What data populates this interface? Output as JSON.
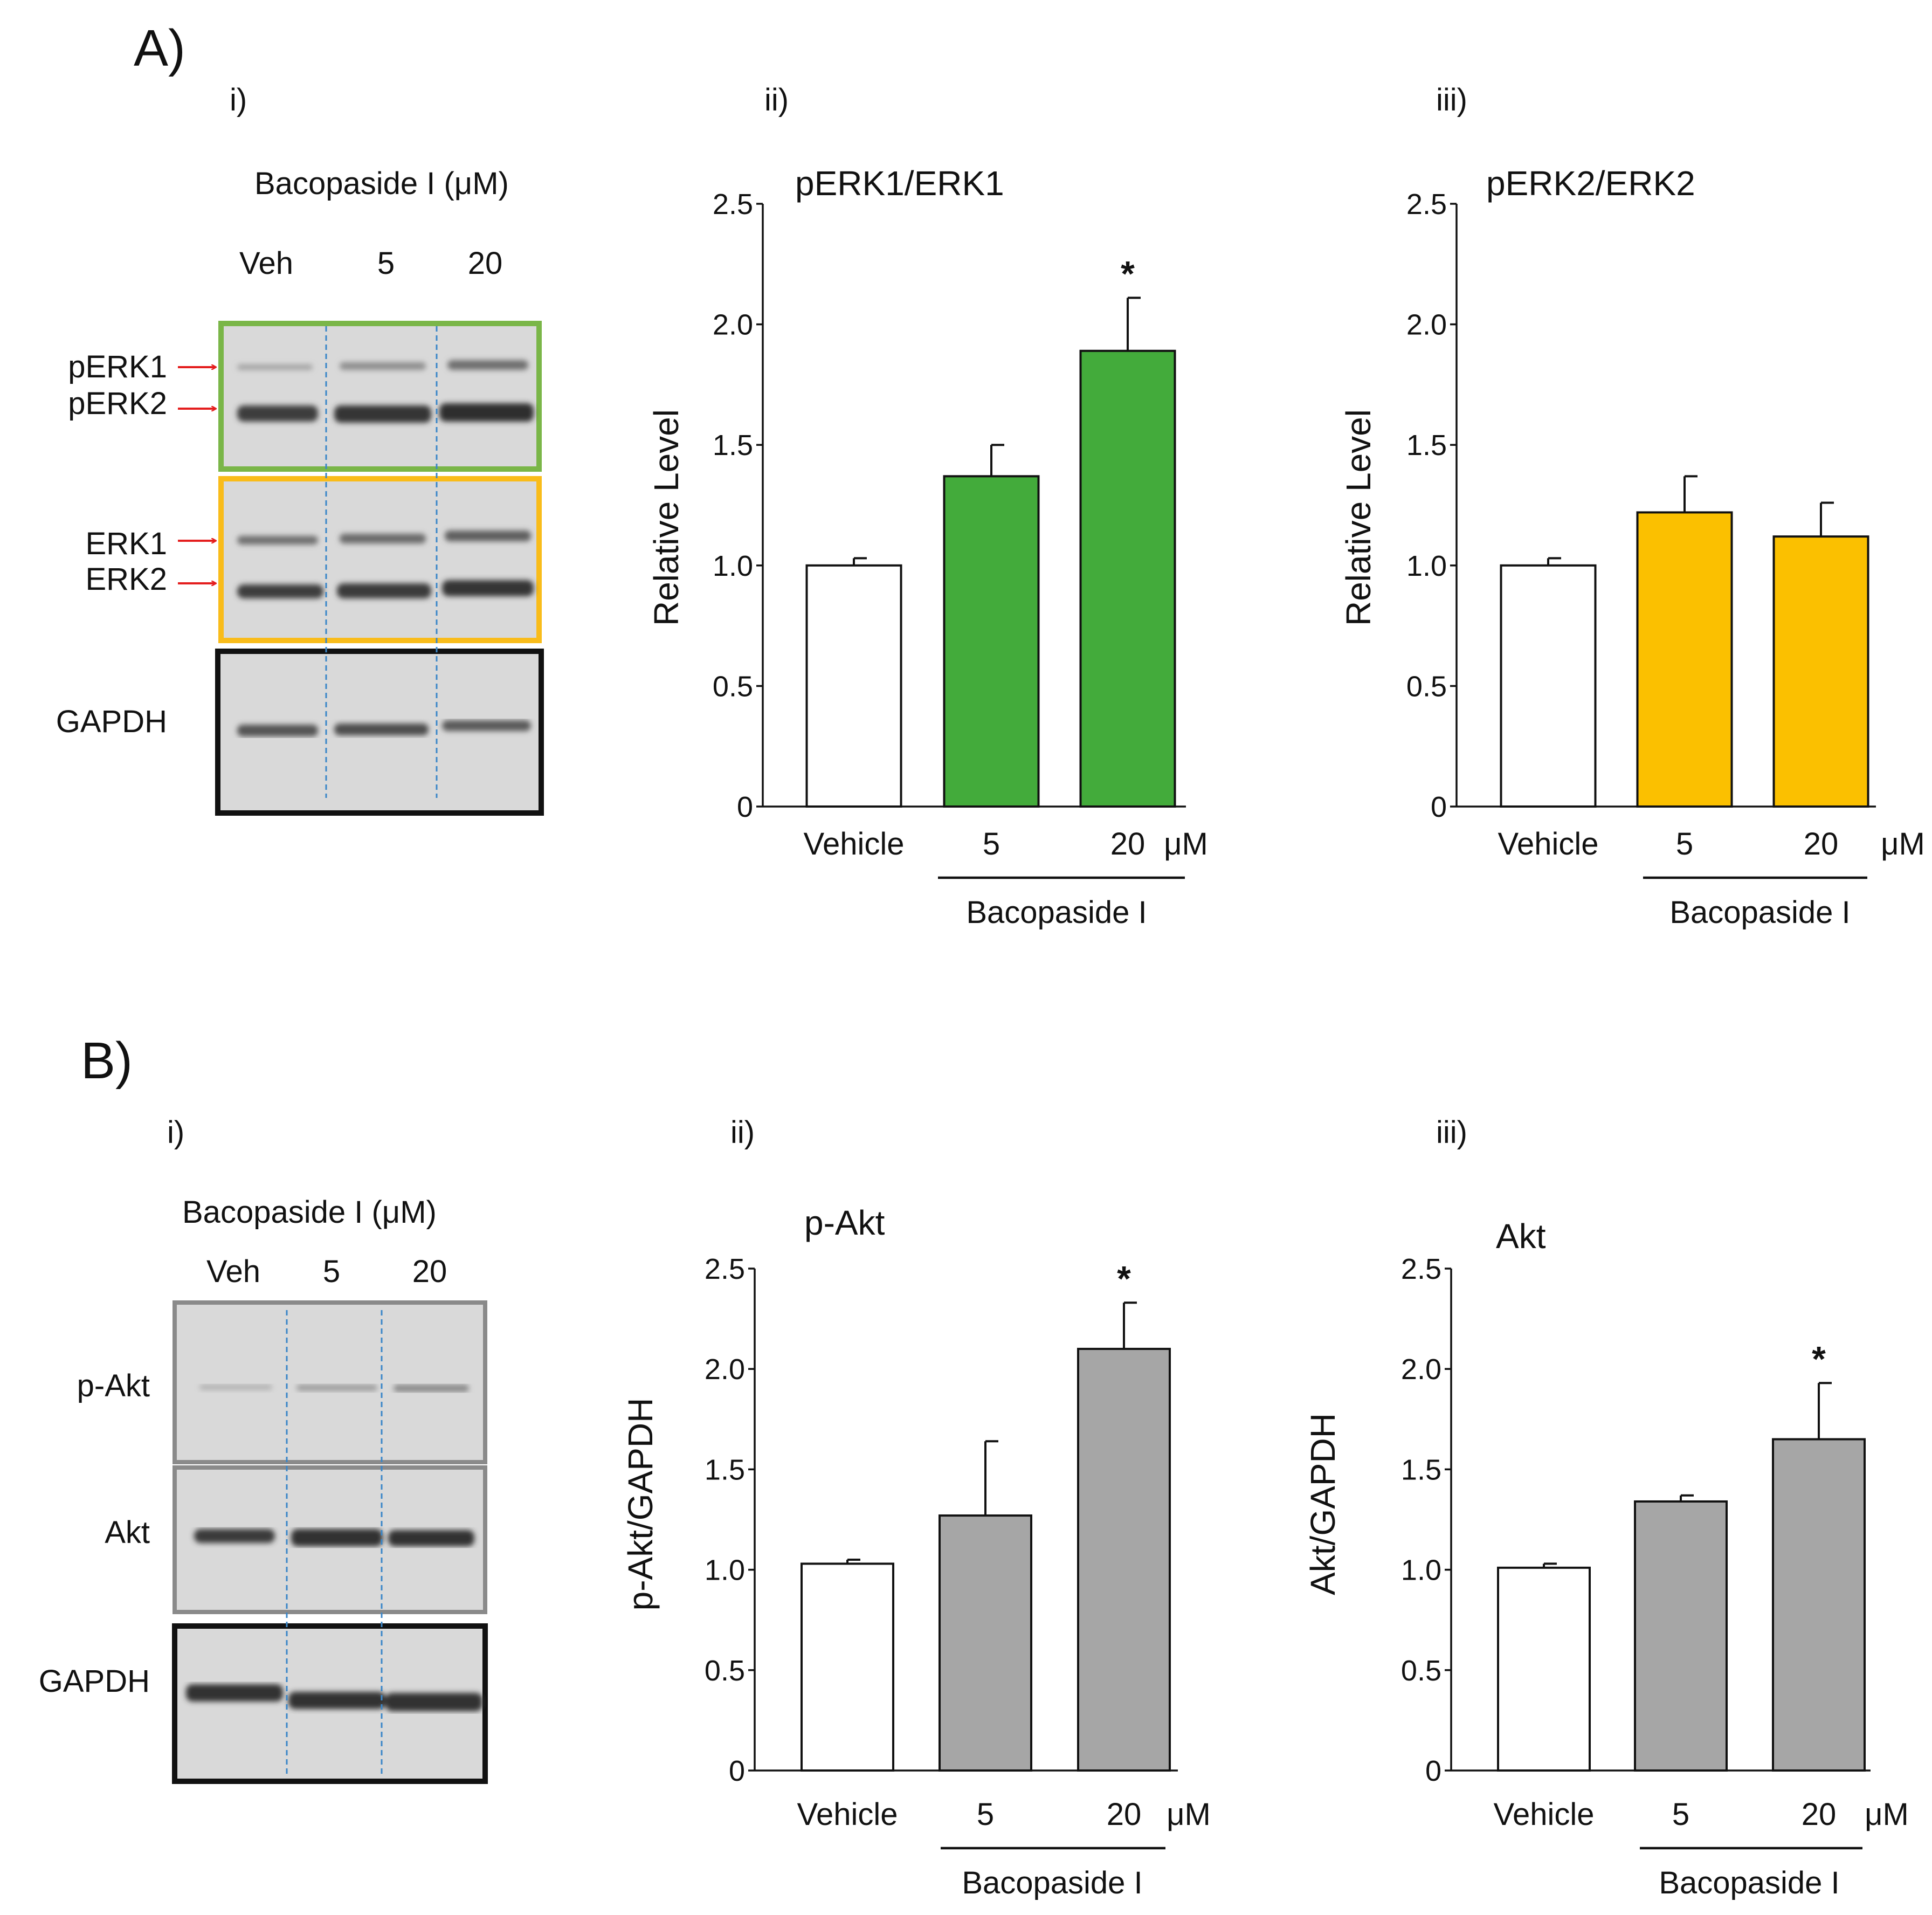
{
  "figure": {
    "panel_a_label": "A)",
    "panel_b_label": "B)",
    "colors": {
      "green": "#43ab3b",
      "yellow": "#fbc000",
      "gray_bar": "#a6a6a6",
      "white_bar": "#ffffff",
      "green_box": "#7ab648",
      "yellow_box": "#f9bc1a",
      "gray_box": "#8a8a8a",
      "blot_bg": "#d9d9d9",
      "lane_divider": "#3a86c8",
      "arrow": "#e41e1e"
    }
  },
  "blots": {
    "a": {
      "sub_label": "i)",
      "treatment": "Bacopaside I (μM)",
      "lanes": [
        "Veh",
        "5",
        "20"
      ],
      "band_labels": [
        "pERK1",
        "pERK2",
        "ERK1",
        "ERK2",
        "GAPDH"
      ]
    },
    "b": {
      "sub_label": "i)",
      "treatment": "Bacopaside I (μM)",
      "lanes": [
        "Veh",
        "5",
        "20"
      ],
      "band_labels": [
        "p-Akt",
        "Akt",
        "GAPDH"
      ]
    }
  },
  "chart_data": [
    {
      "id": "a2",
      "sub_label": "ii)",
      "type": "bar",
      "title": "pERK1/ERK1",
      "ylabel": "Relative Level",
      "xlabel": "Bacopaside I",
      "unit": "μM",
      "categories": [
        "Vehicle",
        "5",
        "20"
      ],
      "values": [
        1.0,
        1.37,
        1.89
      ],
      "errors": [
        0.03,
        0.13,
        0.22
      ],
      "significant": [
        "",
        "",
        "*"
      ],
      "ylim": [
        0,
        2.5
      ],
      "yticks": [
        "0",
        "0.5",
        "1.0",
        "1.5",
        "2.0",
        "2.5"
      ],
      "bar_colors": [
        "#ffffff",
        "#43ab3b",
        "#43ab3b"
      ]
    },
    {
      "id": "a3",
      "sub_label": "iii)",
      "type": "bar",
      "title": "pERK2/ERK2",
      "ylabel": "Relative Level",
      "xlabel": "Bacopaside I",
      "unit": "μM",
      "categories": [
        "Vehicle",
        "5",
        "20"
      ],
      "values": [
        1.0,
        1.22,
        1.12
      ],
      "errors": [
        0.03,
        0.15,
        0.14
      ],
      "significant": [
        "",
        "",
        ""
      ],
      "ylim": [
        0,
        2.5
      ],
      "yticks": [
        "0",
        "0.5",
        "1.0",
        "1.5",
        "2.0",
        "2.5"
      ],
      "bar_colors": [
        "#ffffff",
        "#fbc000",
        "#fbc000"
      ]
    },
    {
      "id": "b2",
      "sub_label": "ii)",
      "type": "bar",
      "title": "p-Akt",
      "ylabel": "p-Akt/GAPDH",
      "xlabel": "Bacopaside I",
      "unit": "μM",
      "categories": [
        "Vehicle",
        "5",
        "20"
      ],
      "values": [
        1.03,
        1.27,
        2.1
      ],
      "errors": [
        0.02,
        0.37,
        0.23
      ],
      "significant": [
        "",
        "",
        "*"
      ],
      "ylim": [
        0,
        2.5
      ],
      "yticks": [
        "0",
        "0.5",
        "1.0",
        "1.5",
        "2.0",
        "2.5"
      ],
      "bar_colors": [
        "#ffffff",
        "#a6a6a6",
        "#a6a6a6"
      ]
    },
    {
      "id": "b3",
      "sub_label": "iii)",
      "type": "bar",
      "title": "Akt",
      "ylabel": "Akt/GAPDH",
      "xlabel": "Bacopaside I",
      "unit": "μM",
      "categories": [
        "Vehicle",
        "5",
        "20"
      ],
      "values": [
        1.01,
        1.34,
        1.65
      ],
      "errors": [
        0.02,
        0.03,
        0.28
      ],
      "significant": [
        "",
        "",
        "*"
      ],
      "ylim": [
        0,
        2.5
      ],
      "yticks": [
        "0",
        "0.5",
        "1.0",
        "1.5",
        "2.0",
        "2.5"
      ],
      "bar_colors": [
        "#ffffff",
        "#a6a6a6",
        "#a6a6a6"
      ]
    }
  ]
}
